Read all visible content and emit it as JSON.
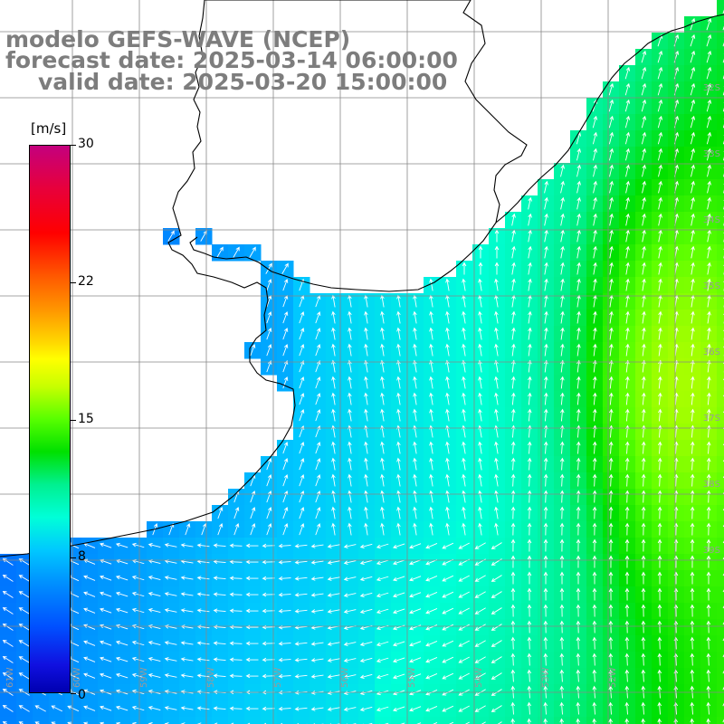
{
  "title": {
    "line1": "modelo GEFS-WAVE (NCEP)",
    "line2": "forecast date: 2025-03-14 06:00:00",
    "line3": "valid date: 2025-03-20 15:00:00"
  },
  "colorbar": {
    "unit": "[m/s]",
    "ticks": [
      {
        "label": "30",
        "value": 30
      },
      {
        "label": "22",
        "value": 22
      },
      {
        "label": "15",
        "value": 15
      },
      {
        "label": "8",
        "value": 8
      },
      {
        "label": "0",
        "value": 0
      }
    ]
  },
  "lat_labels": [
    "32S",
    "33S",
    "34S",
    "35S",
    "36S",
    "37S",
    "38S",
    "39S"
  ],
  "lon_labels": [
    "61W",
    "60W",
    "59W",
    "58W",
    "57W",
    "56W",
    "55W",
    "54W",
    "53W",
    "52W"
  ],
  "colors": {
    "title_text": "#7d7d7d",
    "land": "#ffffff",
    "coastline": "#000000",
    "grid": "#888888",
    "arrows": "#ffffff"
  },
  "field": {
    "variable": "wind speed",
    "low_speed_area": "Rio de la Plata / Buenos Aires coast",
    "high_speed_area": "offshore east of Uruguay"
  }
}
